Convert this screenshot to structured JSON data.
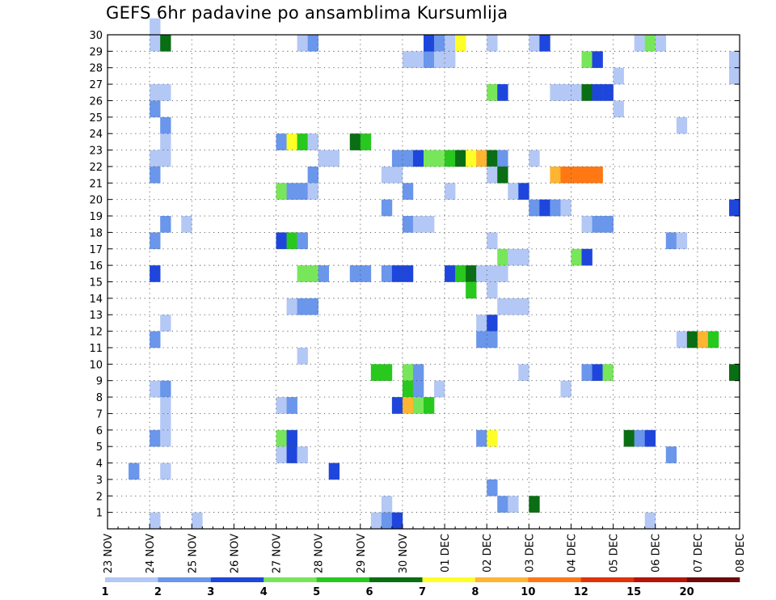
{
  "chart_data": {
    "type": "heatmap",
    "title": "GEFS 6hr padavine po ansamblima Kursumlija",
    "xlabel": "",
    "ylabel": "",
    "x_ticks": [
      "23 NOV",
      "24 NOV",
      "25 NOV",
      "26 NOV",
      "27 NOV",
      "28 NOV",
      "29 NOV",
      "30 NOV",
      "01 DEC",
      "02 DEC",
      "03 DEC",
      "04 DEC",
      "05 DEC",
      "06 DEC",
      "07 DEC",
      "08 DEC"
    ],
    "y_ticks": [
      1,
      2,
      3,
      4,
      5,
      6,
      7,
      8,
      9,
      10,
      11,
      12,
      13,
      14,
      15,
      16,
      17,
      18,
      19,
      20,
      21,
      22,
      23,
      24,
      25,
      26,
      27,
      28,
      29,
      30
    ],
    "x_range_days": [
      0,
      15
    ],
    "y_range": [
      0,
      30
    ],
    "grid": true,
    "colorbar": {
      "labels": [
        "1",
        "2",
        "3",
        "4",
        "5",
        "6",
        "7",
        "8",
        "10",
        "12",
        "15",
        "20"
      ],
      "colors": [
        "#b4c8f5",
        "#6a96eb",
        "#1e46dc",
        "#78e65a",
        "#28c81e",
        "#0a6e14",
        "#ffff28",
        "#ffb432",
        "#ff7814",
        "#e1320a",
        "#b4140a",
        "#6e0a0a"
      ]
    },
    "cells": [
      [
        1.0,
        30,
        0
      ],
      [
        1.0,
        29,
        0
      ],
      [
        1.25,
        29,
        5
      ],
      [
        1.0,
        26,
        0
      ],
      [
        1.25,
        26,
        0
      ],
      [
        1.0,
        25,
        1
      ],
      [
        1.25,
        24,
        1
      ],
      [
        1.25,
        23,
        0
      ],
      [
        1.0,
        22,
        0
      ],
      [
        1.25,
        22,
        0
      ],
      [
        1.0,
        21,
        1
      ],
      [
        1.25,
        18,
        1
      ],
      [
        1.0,
        17,
        1
      ],
      [
        1.0,
        15,
        2
      ],
      [
        1.25,
        12,
        0
      ],
      [
        1.0,
        11,
        1
      ],
      [
        1.0,
        8,
        0
      ],
      [
        1.25,
        8,
        1
      ],
      [
        1.25,
        7,
        0
      ],
      [
        1.25,
        6,
        0
      ],
      [
        1.0,
        5,
        1
      ],
      [
        1.25,
        5,
        0
      ],
      [
        1.25,
        3,
        0
      ],
      [
        1.0,
        0,
        0
      ],
      [
        1.75,
        18,
        0
      ],
      [
        0.5,
        3,
        1
      ],
      [
        2.0,
        0,
        0
      ],
      [
        4.5,
        29,
        0
      ],
      [
        4.75,
        29,
        1
      ],
      [
        4.0,
        23,
        1
      ],
      [
        4.25,
        23,
        6
      ],
      [
        4.5,
        23,
        4
      ],
      [
        4.75,
        23,
        0
      ],
      [
        4.75,
        21,
        1
      ],
      [
        4.0,
        20,
        3
      ],
      [
        4.25,
        20,
        1
      ],
      [
        4.5,
        20,
        1
      ],
      [
        4.75,
        20,
        0
      ],
      [
        4.0,
        17,
        2
      ],
      [
        4.25,
        17,
        4
      ],
      [
        4.5,
        17,
        1
      ],
      [
        4.5,
        15,
        3
      ],
      [
        4.75,
        15,
        3
      ],
      [
        4.25,
        13,
        0
      ],
      [
        4.5,
        13,
        1
      ],
      [
        4.75,
        13,
        1
      ],
      [
        4.5,
        10,
        0
      ],
      [
        4.0,
        7,
        0
      ],
      [
        4.25,
        7,
        1
      ],
      [
        4.0,
        5,
        3
      ],
      [
        4.25,
        5,
        2
      ],
      [
        4.0,
        4,
        0
      ],
      [
        4.25,
        4,
        2
      ],
      [
        4.5,
        4,
        0
      ],
      [
        5.25,
        3,
        2
      ],
      [
        5.0,
        22,
        0
      ],
      [
        5.25,
        22,
        0
      ],
      [
        5.0,
        15,
        1
      ],
      [
        5.75,
        15,
        1
      ],
      [
        6.0,
        15,
        1
      ],
      [
        5.75,
        23,
        5
      ],
      [
        6.0,
        23,
        4
      ],
      [
        6.5,
        15,
        1
      ],
      [
        6.75,
        15,
        2
      ],
      [
        7.0,
        15,
        2
      ],
      [
        6.25,
        9,
        4
      ],
      [
        6.5,
        9,
        4
      ],
      [
        6.5,
        21,
        0
      ],
      [
        6.75,
        21,
        0
      ],
      [
        6.5,
        19,
        1
      ],
      [
        6.75,
        22,
        1
      ],
      [
        7.0,
        22,
        1
      ],
      [
        7.25,
        22,
        2
      ],
      [
        7.5,
        22,
        3
      ],
      [
        7.75,
        22,
        3
      ],
      [
        7.0,
        20,
        1
      ],
      [
        7.0,
        18,
        1
      ],
      [
        7.25,
        18,
        0
      ],
      [
        7.5,
        18,
        0
      ],
      [
        7.0,
        28,
        0
      ],
      [
        7.25,
        28,
        0
      ],
      [
        7.5,
        28,
        1
      ],
      [
        7.5,
        29,
        2
      ],
      [
        7.75,
        29,
        1
      ],
      [
        7.75,
        28,
        0
      ],
      [
        8.0,
        28,
        0
      ],
      [
        8.0,
        29,
        0
      ],
      [
        8.25,
        29,
        6
      ],
      [
        8.0,
        22,
        4
      ],
      [
        8.25,
        22,
        5
      ],
      [
        8.5,
        22,
        6
      ],
      [
        8.75,
        22,
        7
      ],
      [
        8.0,
        20,
        0
      ],
      [
        8.0,
        15,
        2
      ],
      [
        8.25,
        15,
        4
      ],
      [
        8.5,
        15,
        5
      ],
      [
        8.5,
        14,
        4
      ],
      [
        7.0,
        9,
        3
      ],
      [
        7.25,
        9,
        1
      ],
      [
        7.0,
        8,
        4
      ],
      [
        7.25,
        8,
        1
      ],
      [
        7.75,
        8,
        0
      ],
      [
        6.75,
        7,
        2
      ],
      [
        7.0,
        7,
        7
      ],
      [
        7.25,
        7,
        3
      ],
      [
        7.5,
        7,
        4
      ],
      [
        6.5,
        1,
        0
      ],
      [
        6.25,
        0,
        0
      ],
      [
        6.5,
        0,
        1
      ],
      [
        6.75,
        0,
        2
      ],
      [
        9.0,
        29,
        0
      ],
      [
        9.0,
        26,
        3
      ],
      [
        9.25,
        26,
        2
      ],
      [
        9.0,
        22,
        5
      ],
      [
        9.25,
        22,
        1
      ],
      [
        9.0,
        21,
        0
      ],
      [
        9.25,
        21,
        5
      ],
      [
        9.5,
        20,
        0
      ],
      [
        9.75,
        20,
        2
      ],
      [
        9.0,
        17,
        0
      ],
      [
        9.25,
        16,
        3
      ],
      [
        9.5,
        16,
        0
      ],
      [
        9.75,
        16,
        0
      ],
      [
        8.75,
        15,
        0
      ],
      [
        9.0,
        15,
        0
      ],
      [
        9.25,
        15,
        0
      ],
      [
        9.0,
        14,
        0
      ],
      [
        9.25,
        13,
        0
      ],
      [
        9.5,
        13,
        0
      ],
      [
        9.75,
        13,
        0
      ],
      [
        8.75,
        12,
        0
      ],
      [
        9.0,
        12,
        2
      ],
      [
        8.75,
        11,
        1
      ],
      [
        9.0,
        11,
        1
      ],
      [
        8.75,
        5,
        1
      ],
      [
        9.0,
        5,
        6
      ],
      [
        9.0,
        2,
        1
      ],
      [
        9.25,
        1,
        1
      ],
      [
        9.5,
        1,
        0
      ],
      [
        10.0,
        1,
        5
      ],
      [
        10.0,
        29,
        0
      ],
      [
        10.25,
        29,
        2
      ],
      [
        10.0,
        22,
        0
      ],
      [
        10.0,
        19,
        1
      ],
      [
        10.25,
        19,
        2
      ],
      [
        9.75,
        9,
        0
      ],
      [
        10.5,
        21,
        7
      ],
      [
        10.75,
        21,
        8
      ],
      [
        11.0,
        21,
        8
      ],
      [
        11.25,
        21,
        8
      ],
      [
        11.5,
        21,
        8
      ],
      [
        10.5,
        26,
        0
      ],
      [
        10.75,
        26,
        0
      ],
      [
        11.0,
        26,
        0
      ],
      [
        11.25,
        26,
        5
      ],
      [
        11.5,
        26,
        2
      ],
      [
        11.75,
        26,
        2
      ],
      [
        11.25,
        28,
        3
      ],
      [
        11.5,
        28,
        2
      ],
      [
        10.5,
        19,
        1
      ],
      [
        10.75,
        19,
        0
      ],
      [
        11.25,
        18,
        0
      ],
      [
        11.5,
        18,
        1
      ],
      [
        11.75,
        18,
        1
      ],
      [
        11.0,
        16,
        3
      ],
      [
        11.25,
        16,
        2
      ],
      [
        10.75,
        8,
        0
      ],
      [
        11.25,
        9,
        1
      ],
      [
        11.5,
        9,
        2
      ],
      [
        11.75,
        9,
        3
      ],
      [
        12.0,
        27,
        0
      ],
      [
        12.0,
        25,
        0
      ],
      [
        12.25,
        5,
        5
      ],
      [
        12.5,
        5,
        1
      ],
      [
        12.75,
        5,
        2
      ],
      [
        12.5,
        29,
        0
      ],
      [
        12.75,
        29,
        3
      ],
      [
        13.0,
        29,
        0
      ],
      [
        12.75,
        0,
        0
      ],
      [
        13.5,
        24,
        0
      ],
      [
        13.25,
        17,
        1
      ],
      [
        13.5,
        17,
        0
      ],
      [
        13.25,
        4,
        1
      ],
      [
        14.75,
        28,
        0
      ],
      [
        14.75,
        27,
        0
      ],
      [
        14.75,
        19,
        2
      ],
      [
        13.5,
        11,
        0
      ],
      [
        13.75,
        11,
        5
      ],
      [
        14.0,
        11,
        7
      ],
      [
        14.25,
        11,
        4
      ],
      [
        14.75,
        9,
        5
      ]
    ]
  }
}
